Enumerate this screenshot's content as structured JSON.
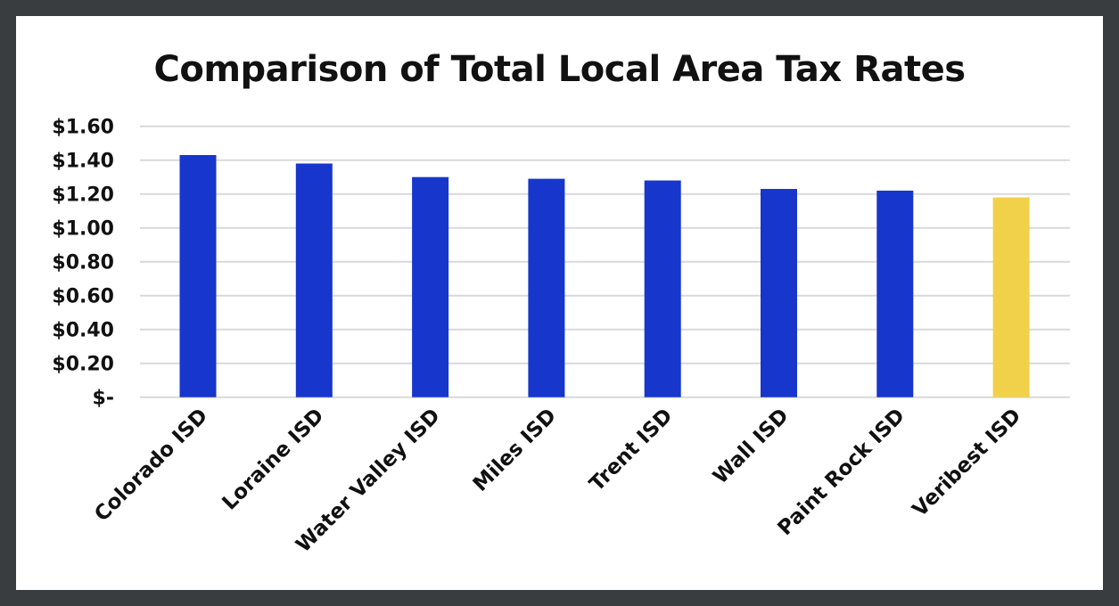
{
  "chart_data": {
    "type": "bar",
    "title": "Comparison of Total Local Area Tax Rates",
    "xlabel": "",
    "ylabel": "",
    "categories": [
      "Colorado ISD",
      "Loraine ISD",
      "Water Valley ISD",
      "Miles ISD",
      "Trent ISD",
      "Wall ISD",
      "Paint Rock ISD",
      "Veribest ISD"
    ],
    "values": [
      1.43,
      1.38,
      1.3,
      1.29,
      1.28,
      1.23,
      1.22,
      1.18
    ],
    "ylim": [
      0,
      1.6
    ],
    "yticks": [
      0,
      0.2,
      0.4,
      0.6,
      0.8,
      1.0,
      1.2,
      1.4,
      1.6
    ],
    "ytick_labels": [
      "$-",
      "$0.20",
      "$0.40",
      "$0.60",
      "$0.80",
      "$1.00",
      "$1.20",
      "$1.40",
      "$1.60"
    ],
    "grid": true,
    "legend": "none",
    "colors": {
      "default": "#1736cc",
      "highlight": "#f2d14a",
      "highlight_category": "Veribest ISD",
      "grid": "#d9d9d9",
      "frame": "#3a3d40"
    }
  }
}
